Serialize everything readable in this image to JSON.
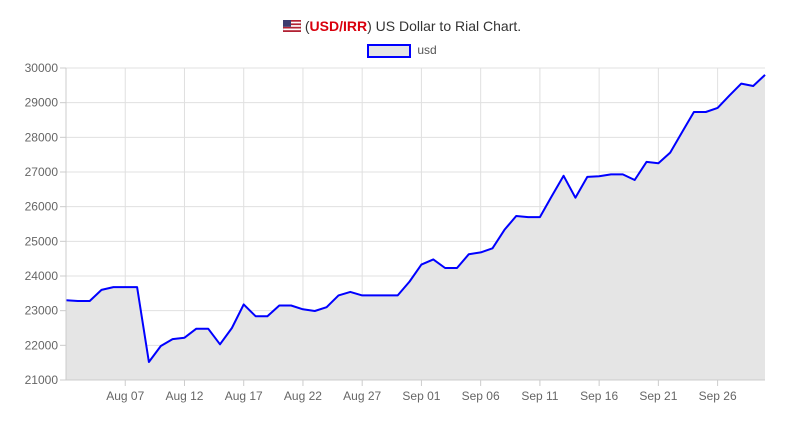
{
  "title": {
    "flag_icon": "us-flag-icon",
    "open_paren": "(",
    "pair": "USD/IRR",
    "close_paren": ")",
    "text": " US Dollar to Rial Chart."
  },
  "colors": {
    "line": "#0000ff",
    "fill": "#e5e5e5",
    "grid": "#e0e0e0",
    "pair_text": "#d9000d"
  },
  "chart_data": {
    "type": "area",
    "title": "(USD/IRR) US Dollar to Rial Chart.",
    "xlabel": "",
    "ylabel": "",
    "ylim": [
      21000,
      30000
    ],
    "yticks": [
      21000,
      22000,
      23000,
      24000,
      25000,
      26000,
      27000,
      28000,
      29000,
      30000
    ],
    "xtick_labels": [
      "Aug 07",
      "Aug 12",
      "Aug 17",
      "Aug 22",
      "Aug 27",
      "Sep 01",
      "Sep 06",
      "Sep 11",
      "Sep 16",
      "Sep 21",
      "Sep 26"
    ],
    "first_tick_day": 5,
    "tick_every_days": 5,
    "start_date": "Aug 02",
    "legend_position": "top",
    "grid": true,
    "series": [
      {
        "name": "usd",
        "values": [
          23300,
          23280,
          23280,
          23600,
          23680,
          23680,
          23680,
          21520,
          21980,
          22180,
          22220,
          22480,
          22480,
          22030,
          22500,
          23180,
          22840,
          22840,
          23150,
          23150,
          23040,
          22990,
          23100,
          23440,
          23540,
          23440,
          23440,
          23440,
          23440,
          23840,
          24330,
          24480,
          24230,
          24230,
          24630,
          24680,
          24800,
          25330,
          25730,
          25700,
          25700,
          26300,
          26890,
          26260,
          26860,
          26880,
          26930,
          26930,
          26770,
          27290,
          27250,
          27560,
          28150,
          28730,
          28730,
          28850,
          29210,
          29550,
          29480,
          29800
        ]
      }
    ]
  }
}
